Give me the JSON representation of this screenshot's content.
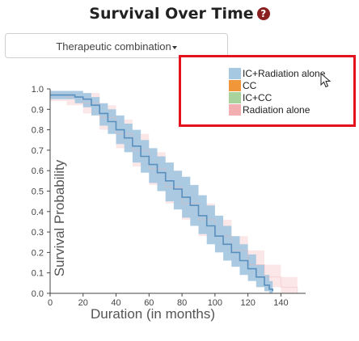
{
  "header": {
    "title": "Survival Over Time",
    "help_icon": "question-circle-icon"
  },
  "controls": {
    "group_select_value": "Therapeutic combination"
  },
  "legend": {
    "items": [
      {
        "label": "IC+Radiation alone",
        "color": "#a6c8e0"
      },
      {
        "label": "CC",
        "color": "#f2963a"
      },
      {
        "label": "IC+CC",
        "color": "#a9d39c"
      },
      {
        "label": "Radiation alone",
        "color": "#f3aeb2"
      }
    ]
  },
  "chart_data": {
    "type": "area",
    "title": "Survival Over Time",
    "xlabel": "Duration (in months)",
    "ylabel": "Survival Probability",
    "xlim": [
      0,
      155
    ],
    "ylim": [
      0,
      1.0
    ],
    "x_ticks": [
      0,
      20,
      40,
      60,
      80,
      100,
      120,
      140
    ],
    "y_ticks": [
      0.0,
      0.1,
      0.2,
      0.3,
      0.4,
      0.5,
      0.6,
      0.7,
      0.8,
      0.9,
      1.0
    ],
    "y_tick_labels": [
      "0.0",
      "0.1",
      "0.2",
      "0.3",
      "0.4",
      "0.5",
      "0.6",
      "0.7",
      "0.8",
      "0.9",
      "1.0"
    ],
    "legend_position": "top-right",
    "series": [
      {
        "name": "IC+Radiation alone",
        "color": "#a6c8e0",
        "line_color": "#5a8fbd",
        "x": [
          0,
          5,
          10,
          15,
          20,
          25,
          30,
          35,
          40,
          45,
          50,
          55,
          60,
          65,
          70,
          75,
          80,
          85,
          90,
          95,
          100,
          105,
          110,
          115,
          120,
          125,
          130,
          133,
          135
        ],
        "y": [
          0.97,
          0.97,
          0.97,
          0.96,
          0.95,
          0.92,
          0.88,
          0.84,
          0.8,
          0.76,
          0.72,
          0.67,
          0.63,
          0.59,
          0.55,
          0.51,
          0.47,
          0.43,
          0.38,
          0.33,
          0.28,
          0.24,
          0.2,
          0.16,
          0.12,
          0.08,
          0.04,
          0.02,
          0.01
        ],
        "lower": [
          0.95,
          0.95,
          0.95,
          0.93,
          0.91,
          0.87,
          0.82,
          0.78,
          0.73,
          0.69,
          0.64,
          0.59,
          0.54,
          0.5,
          0.45,
          0.41,
          0.37,
          0.33,
          0.29,
          0.24,
          0.2,
          0.16,
          0.13,
          0.09,
          0.06,
          0.03,
          0.01,
          0.0,
          0.0
        ],
        "upper": [
          0.99,
          0.99,
          0.99,
          0.99,
          0.98,
          0.96,
          0.93,
          0.9,
          0.87,
          0.83,
          0.8,
          0.75,
          0.71,
          0.67,
          0.64,
          0.6,
          0.57,
          0.53,
          0.48,
          0.43,
          0.38,
          0.33,
          0.28,
          0.24,
          0.19,
          0.14,
          0.09,
          0.06,
          0.04
        ]
      },
      {
        "name": "Radiation alone",
        "color": "#f3aeb2",
        "line_color": "#f3aeb2",
        "x": [
          0,
          10,
          20,
          30,
          40,
          50,
          60,
          70,
          80,
          90,
          100,
          110,
          120,
          130,
          140,
          150
        ],
        "y": [
          0.97,
          0.96,
          0.93,
          0.86,
          0.78,
          0.7,
          0.61,
          0.52,
          0.44,
          0.36,
          0.28,
          0.21,
          0.14,
          0.08,
          0.03,
          0.0
        ],
        "lower": [
          0.94,
          0.92,
          0.88,
          0.8,
          0.71,
          0.62,
          0.53,
          0.44,
          0.36,
          0.28,
          0.21,
          0.14,
          0.08,
          0.03,
          0.0,
          0.0
        ],
        "upper": [
          0.99,
          0.99,
          0.98,
          0.92,
          0.85,
          0.78,
          0.69,
          0.6,
          0.52,
          0.44,
          0.36,
          0.28,
          0.21,
          0.14,
          0.08,
          0.04
        ]
      }
    ]
  }
}
